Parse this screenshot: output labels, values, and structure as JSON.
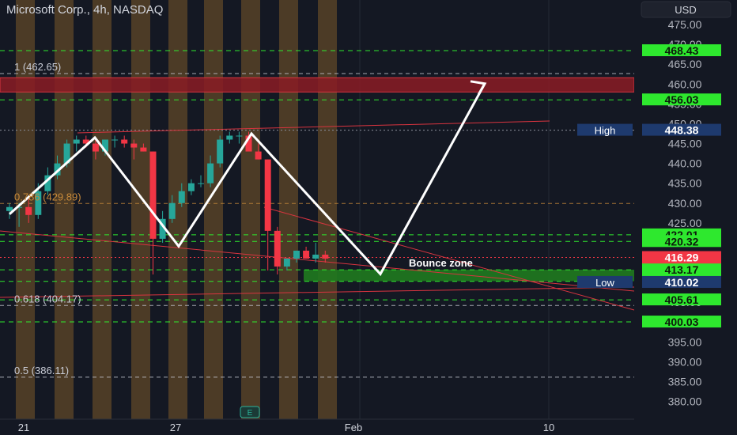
{
  "header": {
    "title": "Microsoft Corp., 4h, NASDAQ",
    "currency": "USD"
  },
  "chart_data": {
    "type": "candlestick",
    "price_ticks": [
      475.0,
      470.0,
      465.0,
      460.0,
      455.0,
      450.0,
      445.0,
      440.0,
      435.0,
      430.0,
      425.0,
      420.0,
      415.0,
      410.0,
      405.0,
      400.0,
      395.0,
      390.0,
      385.0,
      380.0
    ],
    "ylim": [
      378.5,
      480
    ],
    "time_labels": [
      "21",
      "27",
      "Feb",
      "10"
    ],
    "fib_labels": [
      {
        "text": "1 (462.65)",
        "price": 462.65,
        "color": "#c9ccd6"
      },
      {
        "text": "0.786 (429.89)",
        "price": 429.89,
        "color": "#c88a3a"
      },
      {
        "text": "0.618 (404.17)",
        "price": 404.17,
        "color": "#c9ccd6"
      },
      {
        "text": "0.5 (386.11)",
        "price": 386.11,
        "color": "#c9ccd6"
      }
    ],
    "horizontal_levels": [
      468.43,
      456.03,
      422.01,
      420.32,
      413.17,
      410.27,
      405.61,
      400.03
    ],
    "price_badges": [
      {
        "text": "468.43",
        "price": 468.43,
        "bg": "#2ee82e",
        "fg": "#0c1b0c"
      },
      {
        "text": "456.03",
        "price": 456.03,
        "bg": "#2ee82e",
        "fg": "#0c1b0c"
      },
      {
        "text": "448.38",
        "price": 448.38,
        "bg": "#1e3a6e",
        "fg": "#ffffff",
        "tag": "High"
      },
      {
        "text": "422.01",
        "price": 422.01,
        "bg": "#2ee82e",
        "fg": "#0c1b0c"
      },
      {
        "text": "420.32",
        "price": 420.32,
        "bg": "#2ee82e",
        "fg": "#0c1b0c"
      },
      {
        "text": "416.29",
        "price": 416.29,
        "bg": "#f23645",
        "fg": "#ffffff",
        "sub": "10:07"
      },
      {
        "text": "413.17",
        "price": 413.17,
        "bg": "#2ee82e",
        "fg": "#0c1b0c"
      },
      {
        "text": "410.27",
        "price": 410.27,
        "bg": "#2ee82e",
        "fg": "#0c1b0c"
      },
      {
        "text": "410.02",
        "price": 410.02,
        "bg": "#1e3a6e",
        "fg": "#ffffff",
        "tag": "Low"
      },
      {
        "text": "405.61",
        "price": 405.61,
        "bg": "#2ee82e",
        "fg": "#0c1b0c"
      },
      {
        "text": "400.03",
        "price": 400.03,
        "bg": "#2ee82e",
        "fg": "#0c1b0c"
      }
    ],
    "resistance_zone": [
      458.0,
      461.6
    ],
    "bounce_zone": {
      "label": "Bounce zone",
      "range": [
        410.3,
        413.2
      ]
    },
    "candles": [
      [
        428,
        430,
        426,
        429
      ],
      [
        429,
        430,
        424,
        429
      ],
      [
        429,
        431,
        425,
        427
      ],
      [
        427,
        435,
        426,
        433
      ],
      [
        433,
        439,
        432,
        437
      ],
      [
        437,
        442,
        436,
        440
      ],
      [
        440,
        446,
        439,
        445
      ],
      [
        445,
        447,
        443,
        446
      ],
      [
        446,
        447,
        444,
        445
      ],
      [
        445,
        446,
        441,
        443
      ],
      [
        443,
        446,
        442,
        446
      ],
      [
        446,
        447,
        444,
        446
      ],
      [
        446,
        447,
        444,
        445
      ],
      [
        445,
        446,
        441,
        444
      ],
      [
        444,
        445,
        443,
        443
      ],
      [
        443,
        443,
        412,
        421
      ],
      [
        421,
        428,
        420,
        426
      ],
      [
        426,
        432,
        425,
        430
      ],
      [
        430,
        435,
        429,
        433
      ],
      [
        433,
        436,
        432,
        435
      ],
      [
        435,
        437,
        434,
        435
      ],
      [
        435,
        442,
        434,
        440
      ],
      [
        440,
        447,
        439,
        446
      ],
      [
        446,
        448,
        445,
        447
      ],
      [
        447,
        448,
        445,
        447
      ],
      [
        447,
        448,
        443,
        443
      ],
      [
        443,
        445,
        441,
        441
      ],
      [
        441,
        441,
        413,
        423
      ],
      [
        423,
        424,
        412,
        414
      ],
      [
        414,
        416,
        413,
        416
      ],
      [
        416,
        418,
        415,
        418
      ],
      [
        418,
        419,
        416,
        416
      ],
      [
        416,
        420,
        415,
        417
      ],
      [
        417,
        418,
        415,
        416
      ]
    ],
    "projection_path": [
      [
        12,
        427.2
      ],
      [
        120,
        446.5
      ],
      [
        226,
        419.1
      ],
      [
        318,
        447.5
      ],
      [
        481,
        412.1
      ],
      [
        613,
        460.1
      ]
    ]
  },
  "footer": {
    "earnings_label": "E"
  }
}
